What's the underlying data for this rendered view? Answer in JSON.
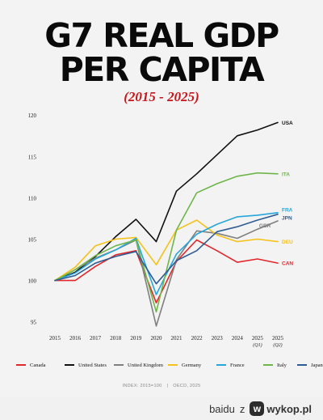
{
  "title_line1": "G7 REAL GDP",
  "title_line2": "PER CAPITA",
  "subtitle": "(2015 - 2025)",
  "chart_data": {
    "type": "line",
    "x_labels": [
      "2015",
      "2016",
      "2017",
      "2018",
      "2019",
      "2020",
      "2021",
      "2022",
      "2023",
      "2024",
      "2025",
      "2025"
    ],
    "x_sublabels": [
      "",
      "",
      "",
      "",
      "",
      "",
      "",
      "",
      "",
      "",
      "(Q1)",
      "(Q2)"
    ],
    "y_ticks": [
      95,
      100,
      105,
      110,
      115,
      120
    ],
    "ylim": [
      93.5,
      121
    ],
    "grid": false,
    "series": [
      {
        "name": "Canada",
        "code": "CAN",
        "color": "#e3262a",
        "values": [
          100.0,
          100.0,
          101.7,
          103.1,
          103.6,
          97.3,
          102.3,
          104.9,
          103.6,
          102.2,
          102.6,
          102.1
        ]
      },
      {
        "name": "United States",
        "code": "USA",
        "color": "#111111",
        "values": [
          100.0,
          101.0,
          102.9,
          105.3,
          107.4,
          104.7,
          110.8,
          112.9,
          115.2,
          117.5,
          118.2,
          119.1
        ]
      },
      {
        "name": "United Kingdom",
        "code": "GBR",
        "color": "#7f7f7f",
        "values": [
          100.0,
          101.3,
          102.7,
          103.7,
          104.9,
          94.5,
          102.5,
          106.0,
          105.7,
          105.1,
          106.2,
          107.2
        ]
      },
      {
        "name": "Germany",
        "code": "DEU",
        "color": "#f4c21a",
        "values": [
          100.0,
          101.6,
          104.2,
          105.0,
          105.2,
          101.9,
          106.1,
          107.3,
          105.5,
          104.7,
          105.0,
          104.7
        ]
      },
      {
        "name": "France",
        "code": "FRA",
        "color": "#27a6dc",
        "values": [
          100.0,
          100.9,
          102.6,
          103.7,
          105.1,
          98.3,
          103.2,
          105.6,
          106.8,
          107.7,
          107.9,
          108.2
        ]
      },
      {
        "name": "Italy",
        "code": "ITA",
        "color": "#6fb64a",
        "values": [
          100.0,
          101.3,
          103.0,
          104.2,
          104.9,
          96.2,
          106.1,
          110.6,
          111.7,
          112.6,
          113.0,
          112.9
        ]
      },
      {
        "name": "Japan",
        "code": "JPN",
        "color": "#2f5d93",
        "values": [
          100.0,
          100.6,
          102.1,
          102.9,
          103.5,
          99.6,
          102.4,
          103.6,
          105.9,
          106.5,
          107.3,
          108.0
        ]
      }
    ]
  },
  "footer": {
    "index_note": "INDEX: 2015=100",
    "source": "OECD, 2025"
  },
  "credit": {
    "user": "baidu",
    "z": "z",
    "site": "wykop.pl",
    "icon_glyph": "w"
  }
}
